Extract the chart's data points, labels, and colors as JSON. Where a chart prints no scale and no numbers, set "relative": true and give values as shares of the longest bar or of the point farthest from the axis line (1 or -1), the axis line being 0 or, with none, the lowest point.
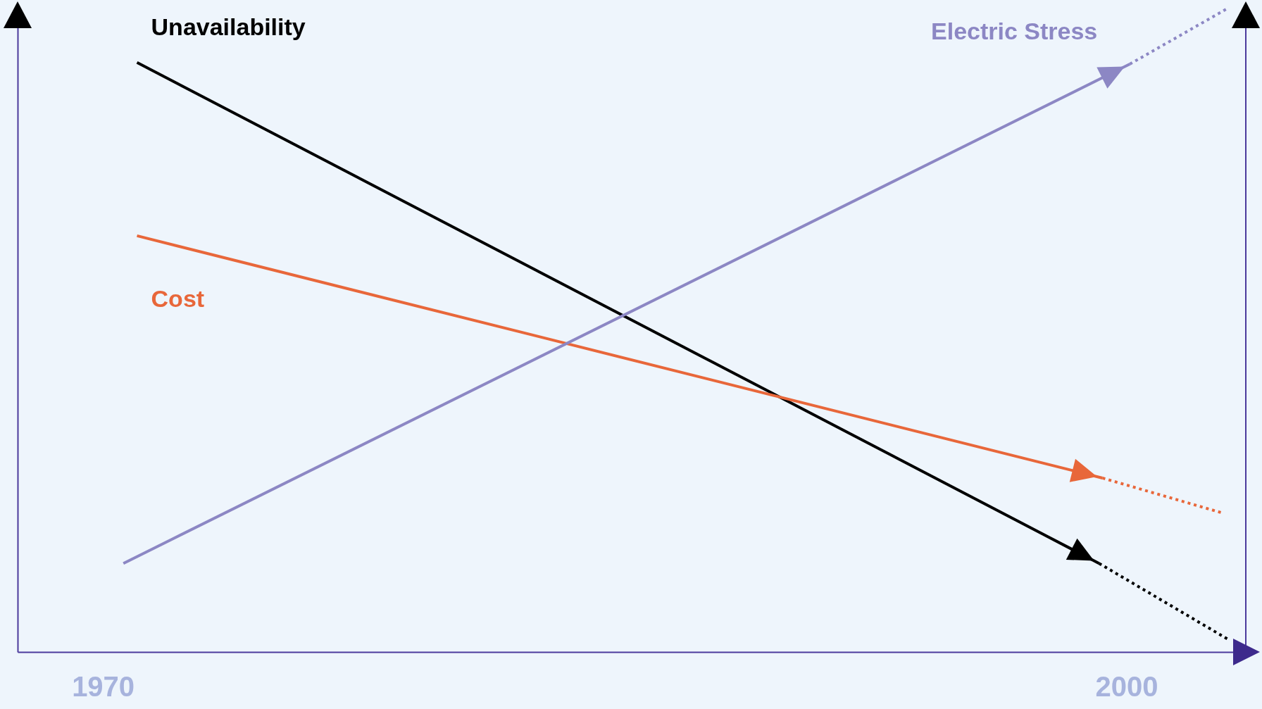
{
  "chart_data": {
    "type": "line",
    "relative": true,
    "xlim": [
      1967.5,
      2003.5
    ],
    "xticks": [
      1970,
      2000
    ],
    "grid": false,
    "series": [
      {
        "name": "Unavailability",
        "color": "#000000",
        "line_style": "solid",
        "x": [
          1971.0,
          1999.2
        ],
        "values": [
          0.915,
          0.1375
        ]
      },
      {
        "name": "Cost",
        "color": "#e8673a",
        "line_style": "solid",
        "x": [
          1971.0,
          1999.3
        ],
        "values": [
          0.646,
          0.27
        ]
      },
      {
        "name": "Electric Stress",
        "color": "#8c87c4",
        "line_style": "solid",
        "x": [
          1970.6,
          2000.1
        ],
        "values": [
          0.1375,
          0.9125
        ]
      },
      {
        "color": "#000000",
        "line_style": "dotted",
        "x": [
          1999.2,
          2003.0
        ],
        "values": [
          0.1375,
          0.019
        ]
      },
      {
        "color": "#e8673a",
        "line_style": "dotted",
        "x": [
          1999.3,
          2002.8
        ],
        "values": [
          0.27,
          0.216
        ]
      },
      {
        "color": "#8c87c4",
        "line_style": "dotted",
        "x": [
          2000.1,
          2003.0
        ],
        "values": [
          0.9125,
          1
        ]
      }
    ]
  }
}
